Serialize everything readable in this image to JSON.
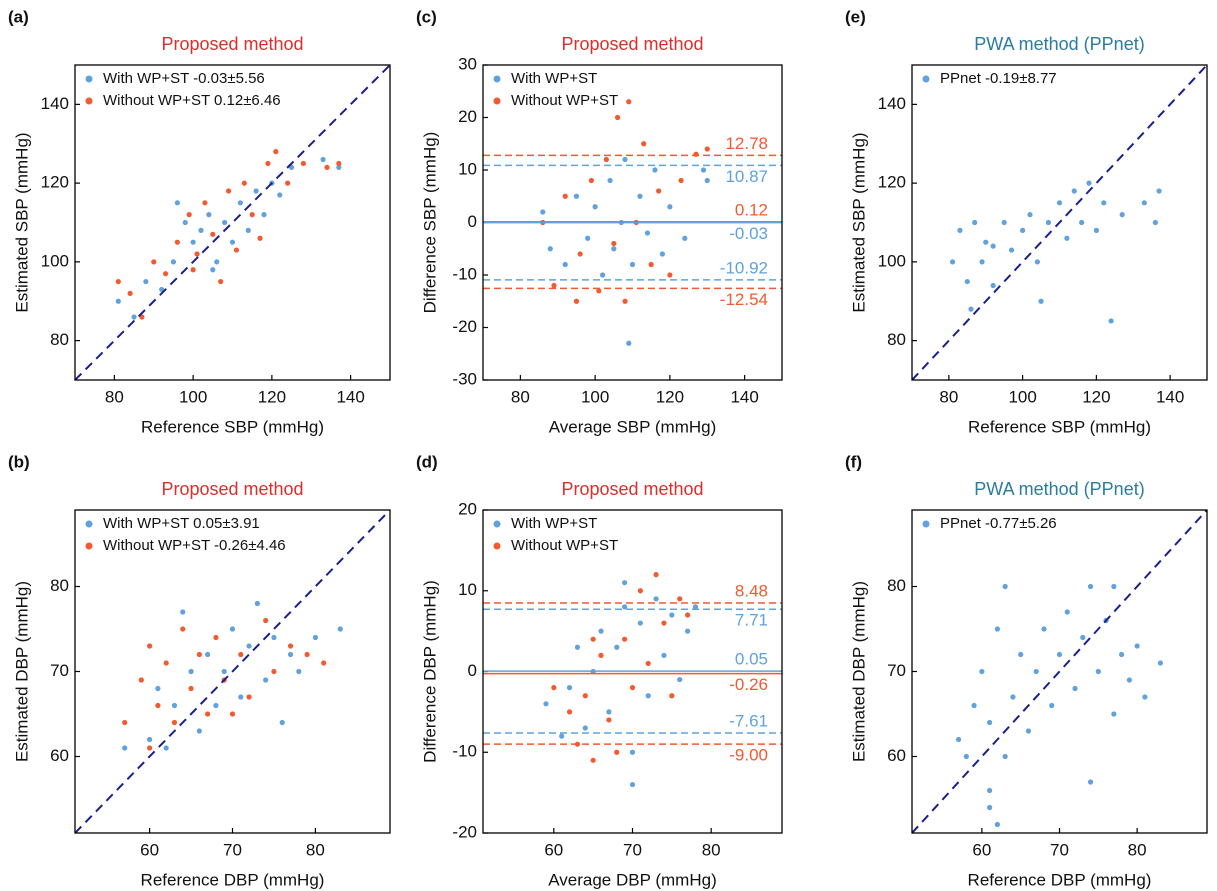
{
  "chart_data": [
    {
      "type": "scatter",
      "panel": "(a)",
      "title": "Proposed method",
      "title_color": "#d9302b",
      "xlabel": "Reference SBP (mmHg)",
      "ylabel": "Estimated SBP (mmHg)",
      "xlim": [
        70,
        150
      ],
      "ylim": [
        70,
        150
      ],
      "xticks": [
        80,
        100,
        120,
        140
      ],
      "yticks": [
        80,
        100,
        120,
        140
      ],
      "identity_line": true,
      "identity_color": "#1a1f8f",
      "series": [
        {
          "name": "With WP+ST -0.03±5.56",
          "color": "#5fa2dd",
          "x": [
            81,
            85,
            88,
            92,
            95,
            98,
            100,
            102,
            104,
            106,
            108,
            110,
            112,
            114,
            116,
            118,
            120,
            122,
            125,
            133,
            137,
            96,
            105
          ],
          "y": [
            90,
            86,
            95,
            93,
            100,
            110,
            105,
            108,
            112,
            100,
            110,
            105,
            115,
            108,
            118,
            112,
            120,
            117,
            124,
            126,
            124,
            115,
            98
          ]
        },
        {
          "name": "Without WP+ST 0.12±6.46",
          "color": "#f4592f",
          "x": [
            81,
            84,
            87,
            90,
            93,
            96,
            99,
            101,
            103,
            105,
            107,
            109,
            111,
            113,
            115,
            117,
            119,
            121,
            124,
            128,
            134,
            137,
            100
          ],
          "y": [
            95,
            92,
            86,
            100,
            97,
            105,
            112,
            102,
            115,
            107,
            95,
            118,
            103,
            120,
            112,
            106,
            125,
            128,
            120,
            125,
            124,
            125,
            98
          ]
        }
      ]
    },
    {
      "type": "scatter",
      "panel": "(b)",
      "title": "Proposed method",
      "title_color": "#d9302b",
      "xlabel": "Reference DBP (mmHg)",
      "ylabel": "Estimated DBP (mmHg)",
      "xlim": [
        51,
        89
      ],
      "ylim": [
        51,
        89
      ],
      "xticks": [
        60,
        70,
        80
      ],
      "yticks": [
        60,
        70,
        80
      ],
      "identity_line": true,
      "identity_color": "#1a1f8f",
      "series": [
        {
          "name": "With WP+ST 0.05±3.91",
          "color": "#5fa2dd",
          "x": [
            57,
            60,
            61,
            62,
            63,
            64,
            65,
            66,
            67,
            68,
            69,
            70,
            71,
            72,
            73,
            74,
            75,
            76,
            77,
            78,
            80,
            83
          ],
          "y": [
            61,
            62,
            68,
            61,
            66,
            77,
            70,
            63,
            72,
            66,
            70,
            75,
            67,
            73,
            78,
            69,
            74,
            64,
            72,
            70,
            74,
            75
          ]
        },
        {
          "name": "Without WP+ST -0.26±4.46",
          "color": "#f4592f",
          "x": [
            57,
            59,
            60,
            61,
            62,
            63,
            64,
            65,
            66,
            67,
            68,
            69,
            70,
            71,
            72,
            74,
            75,
            77,
            79,
            81,
            60
          ],
          "y": [
            64,
            69,
            61,
            66,
            71,
            64,
            75,
            68,
            72,
            65,
            74,
            69,
            65,
            72,
            67,
            76,
            70,
            73,
            72,
            71,
            73
          ]
        }
      ]
    },
    {
      "type": "scatter",
      "panel": "(c)",
      "title": "Proposed method",
      "title_color": "#d9302b",
      "xlabel": "Average SBP (mmHg)",
      "ylabel": "Difference SBP (mmHg)",
      "xlim": [
        70,
        150
      ],
      "ylim": [
        -30,
        30
      ],
      "xticks": [
        80,
        100,
        120,
        140
      ],
      "yticks": [
        -30,
        -20,
        -10,
        0,
        10,
        20,
        30
      ],
      "series": [
        {
          "name": "With WP+ST",
          "color": "#5fa2dd",
          "x": [
            86,
            88,
            92,
            95,
            98,
            100,
            102,
            104,
            105,
            107,
            108,
            109,
            110,
            112,
            114,
            116,
            118,
            120,
            124,
            129,
            130
          ],
          "y": [
            2,
            -5,
            -8,
            5,
            -3,
            3,
            -10,
            8,
            -5,
            0,
            12,
            -23,
            -8,
            5,
            -2,
            10,
            -6,
            3,
            -3,
            10,
            8
          ]
        },
        {
          "name": "Without WP+ST",
          "color": "#f4592f",
          "x": [
            86,
            89,
            92,
            96,
            99,
            101,
            103,
            105,
            106,
            108,
            109,
            111,
            113,
            115,
            117,
            120,
            123,
            127,
            130,
            95
          ],
          "y": [
            0,
            -12,
            5,
            -6,
            8,
            -13,
            12,
            -4,
            20,
            -15,
            23,
            0,
            15,
            -8,
            6,
            -10,
            8,
            13,
            14,
            -15
          ]
        }
      ],
      "ref_lines": [
        {
          "value": 12.78,
          "color": "#f4592f",
          "dash": true
        },
        {
          "value": 10.87,
          "color": "#5fa2dd",
          "dash": true
        },
        {
          "value": 0.12,
          "color": "#f4592f",
          "dash": false
        },
        {
          "value": -0.03,
          "color": "#5fa2dd",
          "dash": false
        },
        {
          "value": -10.92,
          "color": "#5fa2dd",
          "dash": true
        },
        {
          "value": -12.54,
          "color": "#f4592f",
          "dash": true
        }
      ]
    },
    {
      "type": "scatter",
      "panel": "(d)",
      "title": "Proposed method",
      "title_color": "#d9302b",
      "xlabel": "Average DBP (mmHg)",
      "ylabel": "Difference DBP (mmHg)",
      "xlim": [
        51,
        89
      ],
      "ylim": [
        -20,
        20
      ],
      "xticks": [
        60,
        70,
        80
      ],
      "yticks": [
        -20,
        -10,
        0,
        10,
        20
      ],
      "series": [
        {
          "name": "With WP+ST",
          "color": "#5fa2dd",
          "x": [
            59,
            61,
            62,
            63,
            64,
            65,
            66,
            67,
            68,
            69,
            70,
            70,
            71,
            72,
            73,
            74,
            75,
            76,
            77,
            78,
            69
          ],
          "y": [
            -4,
            -8,
            -2,
            3,
            -7,
            0,
            5,
            -5,
            3,
            8,
            -10,
            -14,
            6,
            -3,
            9,
            2,
            7,
            -1,
            5,
            8,
            11
          ]
        },
        {
          "name": "Without WP+ST",
          "color": "#f4592f",
          "x": [
            60,
            62,
            63,
            64,
            65,
            66,
            67,
            68,
            69,
            70,
            71,
            72,
            73,
            74,
            75,
            76,
            77,
            65
          ],
          "y": [
            -2,
            -5,
            -9,
            -3,
            -11,
            2,
            -6,
            -10,
            4,
            -2,
            10,
            1,
            12,
            6,
            -3,
            9,
            7,
            4
          ]
        }
      ],
      "ref_lines": [
        {
          "value": 8.48,
          "color": "#f4592f",
          "dash": true
        },
        {
          "value": 7.71,
          "color": "#5fa2dd",
          "dash": true
        },
        {
          "value": 0.05,
          "color": "#5fa2dd",
          "dash": false
        },
        {
          "value": -0.26,
          "color": "#f4592f",
          "dash": false
        },
        {
          "value": -7.61,
          "color": "#5fa2dd",
          "dash": true
        },
        {
          "value": -9,
          "label": "-9.00",
          "color": "#f4592f",
          "dash": true
        }
      ]
    },
    {
      "type": "scatter",
      "panel": "(e)",
      "title": "PWA method (PPnet)",
      "title_color": "#2b7c9e",
      "xlabel": "Reference SBP (mmHg)",
      "ylabel": "Estimated SBP (mmHg)",
      "xlim": [
        70,
        150
      ],
      "ylim": [
        70,
        150
      ],
      "xticks": [
        80,
        100,
        120,
        140
      ],
      "yticks": [
        80,
        100,
        120,
        140
      ],
      "identity_line": true,
      "identity_color": "#1a1f8f",
      "series": [
        {
          "name": "PPnet -0.19±8.77",
          "color": "#5fa2dd",
          "x": [
            81,
            83,
            85,
            86,
            87,
            89,
            90,
            92,
            95,
            97,
            100,
            102,
            104,
            105,
            107,
            110,
            112,
            114,
            116,
            118,
            120,
            122,
            124,
            127,
            133,
            136,
            137,
            92
          ],
          "y": [
            100,
            108,
            95,
            88,
            110,
            100,
            105,
            94,
            110,
            103,
            108,
            112,
            100,
            90,
            110,
            115,
            106,
            118,
            110,
            120,
            108,
            115,
            85,
            112,
            115,
            110,
            118,
            104
          ]
        }
      ]
    },
    {
      "type": "scatter",
      "panel": "(f)",
      "title": "PWA method (PPnet)",
      "title_color": "#2b7c9e",
      "xlabel": "Reference DBP (mmHg)",
      "ylabel": "Estimated DBP (mmHg)",
      "xlim": [
        51,
        89
      ],
      "ylim": [
        51,
        89
      ],
      "xticks": [
        60,
        70,
        80
      ],
      "yticks": [
        60,
        70,
        80
      ],
      "identity_line": true,
      "identity_color": "#1a1f8f",
      "series": [
        {
          "name": "PPnet -0.77±5.26",
          "color": "#5fa2dd",
          "x": [
            57,
            58,
            59,
            60,
            61,
            61,
            62,
            63,
            63,
            64,
            65,
            66,
            67,
            68,
            69,
            70,
            71,
            72,
            73,
            74,
            74,
            75,
            76,
            77,
            77,
            78,
            79,
            80,
            81,
            83,
            61,
            62
          ],
          "y": [
            62,
            60,
            66,
            70,
            56,
            64,
            52,
            60,
            80,
            67,
            72,
            63,
            70,
            75,
            66,
            72,
            77,
            68,
            74,
            80,
            57,
            70,
            76,
            65,
            80,
            72,
            69,
            73,
            67,
            71,
            54,
            75
          ]
        }
      ]
    }
  ]
}
